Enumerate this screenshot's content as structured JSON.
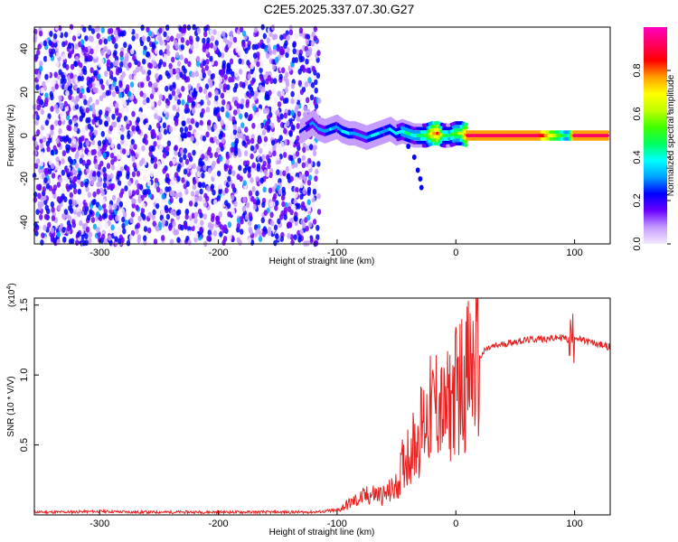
{
  "chart_data": [
    {
      "type": "heatmap",
      "title": "C2E5.2025.337.07.30.G27",
      "xlabel": "Height of straight line (km)",
      "ylabel": "Frequency (Hz)",
      "xlim": [
        -355,
        130
      ],
      "ylim": [
        -50,
        50
      ],
      "xticks": [
        -300,
        -200,
        -100,
        0,
        100
      ],
      "yticks": [
        -40,
        -20,
        0,
        20,
        40
      ],
      "colorbar": {
        "label": "Normalized spectral amplitude",
        "range": [
          0,
          1
        ],
        "ticks": [
          "0.0",
          "0.2",
          "0.4",
          "0.6",
          "0.8"
        ],
        "colors": [
          "#f4e9ff",
          "#c59cff",
          "#6a00ff",
          "#0000ff",
          "#00a0ff",
          "#00ffff",
          "#00ff60",
          "#40ff00",
          "#c0ff00",
          "#ffff00",
          "#ffa000",
          "#ff0000",
          "#ff0060",
          "#ff00c0"
        ]
      },
      "series": [
        {
          "points": [
            [
              -130,
              2,
              0.2
            ],
            [
              -125,
              4,
              0.25
            ],
            [
              -120,
              6,
              0.3
            ],
            [
              -115,
              3,
              0.3
            ],
            [
              -110,
              2,
              0.3
            ],
            [
              -105,
              3,
              0.35
            ],
            [
              -100,
              4,
              0.3
            ],
            [
              -95,
              2,
              0.35
            ],
            [
              -90,
              1,
              0.35
            ],
            [
              -85,
              1,
              0.3
            ],
            [
              -80,
              0,
              0.3
            ],
            [
              -75,
              -1,
              0.3
            ],
            [
              -70,
              0,
              0.35
            ],
            [
              -65,
              1,
              0.35
            ],
            [
              -60,
              2,
              0.3
            ],
            [
              -55,
              3,
              0.35
            ],
            [
              -50,
              1,
              0.35
            ],
            [
              -45,
              2,
              0.4
            ],
            [
              -40,
              1,
              0.45
            ],
            [
              -35,
              0,
              0.4
            ],
            [
              -30,
              0,
              0.45
            ],
            [
              -25,
              0,
              0.5
            ],
            [
              -20,
              1,
              0.7
            ],
            [
              -15,
              1,
              0.85
            ],
            [
              -10,
              0,
              0.5
            ],
            [
              -5,
              0,
              0.45
            ],
            [
              0,
              1,
              0.55
            ],
            [
              5,
              1,
              0.6
            ],
            [
              10,
              0,
              0.9
            ],
            [
              40,
              0,
              0.9
            ],
            [
              70,
              0,
              0.9
            ],
            [
              95,
              0,
              0.4
            ],
            [
              100,
              0,
              0.9
            ],
            [
              129,
              0,
              0.9
            ]
          ]
        }
      ]
    },
    {
      "type": "line",
      "xlabel": "Height of straight line (km)",
      "ylabel": "SNR (10 * V/V)",
      "scale_label": "(x10",
      "scale_exponent": "4",
      "scale_suffix": ")",
      "xlim": [
        -355,
        130
      ],
      "ylim": [
        0,
        1.55
      ],
      "xticks": [
        -300,
        -200,
        -100,
        0,
        100
      ],
      "yticks": [
        "0.5",
        "1.0",
        "1.5"
      ],
      "color": "#e82020",
      "x": [
        -355,
        -330,
        -300,
        -270,
        -240,
        -210,
        -180,
        -150,
        -120,
        -100,
        -90,
        -80,
        -70,
        -60,
        -50,
        -45,
        -40,
        -35,
        -30,
        -25,
        -20,
        -15,
        -10,
        -5,
        0,
        5,
        10,
        15,
        20,
        25,
        30,
        40,
        50,
        60,
        70,
        80,
        90,
        95,
        100,
        105,
        110,
        120,
        130
      ],
      "values": [
        0.02,
        0.02,
        0.025,
        0.02,
        0.02,
        0.02,
        0.02,
        0.02,
        0.02,
        0.03,
        0.08,
        0.12,
        0.15,
        0.14,
        0.2,
        0.35,
        0.45,
        0.5,
        0.6,
        0.7,
        0.75,
        0.82,
        0.7,
        0.8,
        0.9,
        0.95,
        1.0,
        1.05,
        1.12,
        1.18,
        1.2,
        1.22,
        1.24,
        1.25,
        1.26,
        1.26,
        1.27,
        1.25,
        1.28,
        1.25,
        1.24,
        1.22,
        1.2
      ]
    }
  ]
}
